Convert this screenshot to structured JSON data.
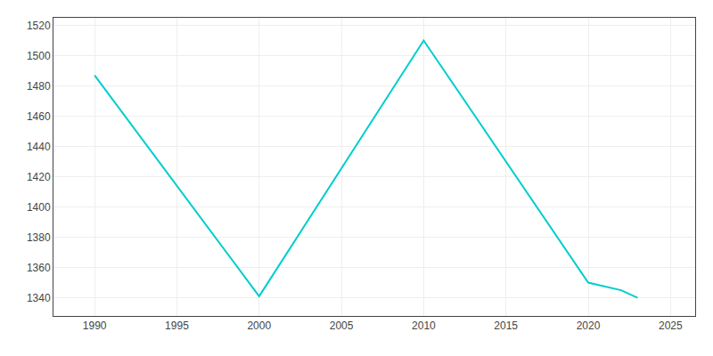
{
  "chart_data": {
    "type": "line",
    "x": [
      1990,
      2000,
      2010,
      2020,
      2022,
      2023
    ],
    "values": [
      1487,
      1341,
      1510,
      1350,
      1345,
      1340
    ],
    "color": "#00CDCD",
    "xlim": [
      1987.5,
      2026.5
    ],
    "xticks": [
      1990,
      1995,
      2000,
      2005,
      2010,
      2015,
      2020,
      2025
    ],
    "ylim": [
      1328,
      1525
    ],
    "yticks": [
      1340,
      1360,
      1380,
      1400,
      1420,
      1440,
      1460,
      1480,
      1500,
      1520
    ],
    "grid": true
  }
}
